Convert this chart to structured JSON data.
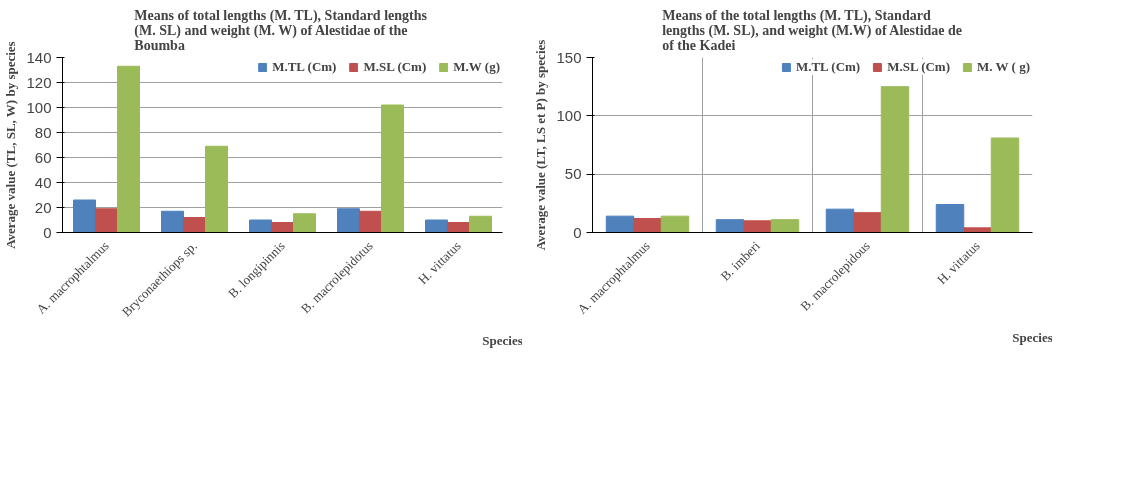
{
  "chart_data": [
    {
      "type": "bar",
      "title": "Means of total lengths (M. TL),  Standard lengths (M. SL) and weight (M. W)  of Alestidae of the Boumba",
      "xlabel": "Species",
      "ylabel": "Average value (TL, SL, W) by species",
      "categories": [
        "A. macrophtalmus",
        "Bryconaethiops sp.",
        "B. longipinnis",
        "B. macrolepidotus",
        "H. vittatus"
      ],
      "series": [
        {
          "name": "M.TL (Cm)",
          "color": "#4f81bd",
          "values": [
            26,
            17,
            10,
            19,
            10
          ]
        },
        {
          "name": "M.SL (Cm)",
          "color": "#c0504d",
          "values": [
            19,
            12,
            8,
            17,
            8
          ]
        },
        {
          "name": "M.W (g)",
          "color": "#9bbb59",
          "values": [
            133,
            69,
            15,
            102,
            13
          ]
        }
      ],
      "ylim": [
        0,
        140
      ],
      "yticks": [
        0,
        20,
        40,
        60,
        80,
        100,
        120,
        140
      ],
      "grid": "y",
      "legend": "top right"
    },
    {
      "type": "bar",
      "title": "Means of the total lengths (M. TL), Standard lengths (M. SL), and weight (M.W) of Alestidae de of the Kadei",
      "xlabel": "Species",
      "ylabel": "Average value (LT, LS et P) by species",
      "categories": [
        "A. macrophtalmus",
        "B. imberi",
        "B. macrolepidous",
        "H. vittatus"
      ],
      "series": [
        {
          "name": "M.TL (Cm)",
          "color": "#4f81bd",
          "values": [
            14,
            11,
            20,
            24
          ]
        },
        {
          "name": "M.SL (Cm)",
          "color": "#c0504d",
          "values": [
            12,
            10,
            17,
            4
          ]
        },
        {
          "name": "M. W ( g)",
          "color": "#9bbb59",
          "values": [
            14,
            11,
            125,
            81
          ]
        }
      ],
      "ylim": [
        0,
        150
      ],
      "yticks": [
        0,
        50,
        100,
        150
      ],
      "grid": true,
      "legend": "top right"
    }
  ]
}
